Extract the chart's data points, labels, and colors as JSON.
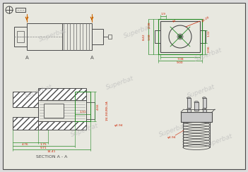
{
  "bg_color": "#dcdcdc",
  "paper_color": "#e8e8e0",
  "line_color": "#4a4a4a",
  "dim_color": "#cc2200",
  "green_color": "#228822",
  "orange_color": "#cc6600",
  "watermark": "Superbat",
  "title": "SECTION A - A",
  "dims": {
    "phi1": "φ1",
    "phi4_20": "φ4.20",
    "d498": "4.98",
    "d168": "1.68",
    "d19": "1.9",
    "d708": "7.08",
    "d900": "9.00",
    "d132": "1.32",
    "d096": "0.96",
    "d842": "8.42",
    "d476": "4.76",
    "d175": "1.75",
    "d191": "1.91",
    "d971": "9.71",
    "d1441": "14.41",
    "d466": "4.66",
    "thread": "1/4-36UNS-2A",
    "phi494": "φ4.94"
  }
}
